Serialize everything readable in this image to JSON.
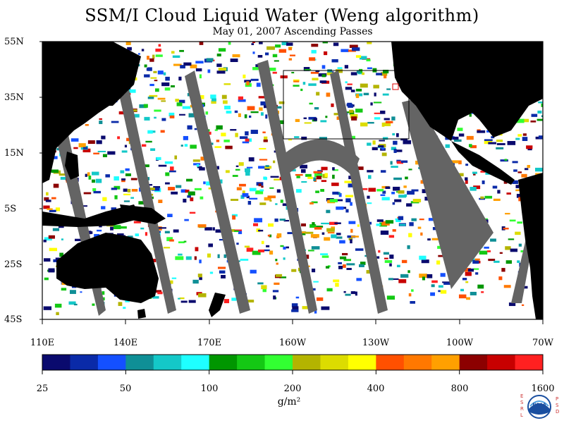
{
  "title": "SSM/I Cloud Liquid Water (Weng algorithm)",
  "subtitle": "May 01, 2007  Ascending Passes",
  "lat_labels": [
    "55N",
    "35N",
    "15N",
    "5S",
    "25S",
    "45S"
  ],
  "lon_labels": [
    "110E",
    "140E",
    "170E",
    "160W",
    "130W",
    "100W",
    "70W"
  ],
  "colorbar": {
    "tick_labels": [
      "25",
      "50",
      "100",
      "200",
      "400",
      "800",
      "1600"
    ],
    "unit": "g/m²",
    "colors": [
      "#0a0a6e",
      "#0a2aa8",
      "#1450ff",
      "#0f8f96",
      "#14c8c8",
      "#1effff",
      "#009600",
      "#14c814",
      "#32ff32",
      "#b4b400",
      "#dcdc00",
      "#ffff00",
      "#ff5000",
      "#ff7800",
      "#ffa000",
      "#8c0000",
      "#c80000",
      "#ff2020"
    ]
  },
  "map": {
    "land_color": "#000000",
    "no_data_color": "#646464",
    "ocean_clear_color": "#ffffff"
  },
  "logo": {
    "text": "NOAA",
    "left_letters": "ESRL",
    "right_letters": "PSD"
  }
}
